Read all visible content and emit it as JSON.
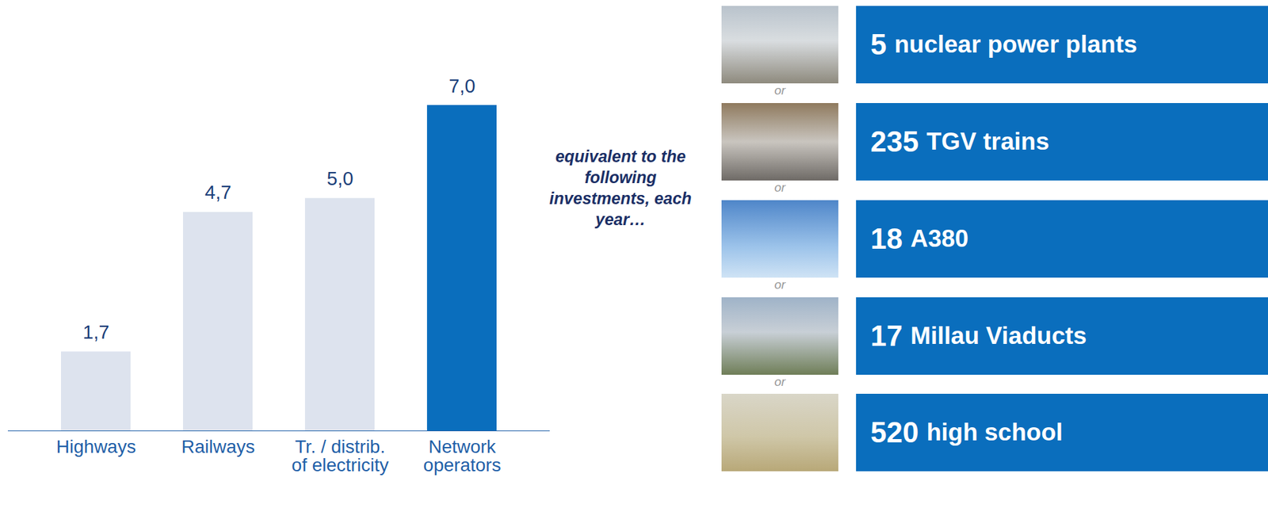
{
  "chart_data": {
    "type": "bar",
    "categories": [
      "Highways",
      "Railways",
      "Tr. / distrib. of electricity",
      "Network operators"
    ],
    "values": [
      1.7,
      4.7,
      5.0,
      7.0
    ],
    "value_labels": [
      "1,7",
      "4,7",
      "5,0",
      "7,0"
    ],
    "colors": [
      "#dde3ee",
      "#dde3ee",
      "#dde3ee",
      "#0a6ebd"
    ],
    "ylim": [
      0,
      7
    ],
    "data_labels": true,
    "tick_labels": "x"
  },
  "equivalents": {
    "intro": "equivalent to the following investments, each year…",
    "separator": "or",
    "items": [
      {
        "count": 5,
        "label": "nuclear power plants"
      },
      {
        "count": 235,
        "label": "TGV trains"
      },
      {
        "count": 18,
        "label": "A380"
      },
      {
        "count": 17,
        "label": "Millau Viaducts"
      },
      {
        "count": 520,
        "label": "high school"
      }
    ]
  }
}
